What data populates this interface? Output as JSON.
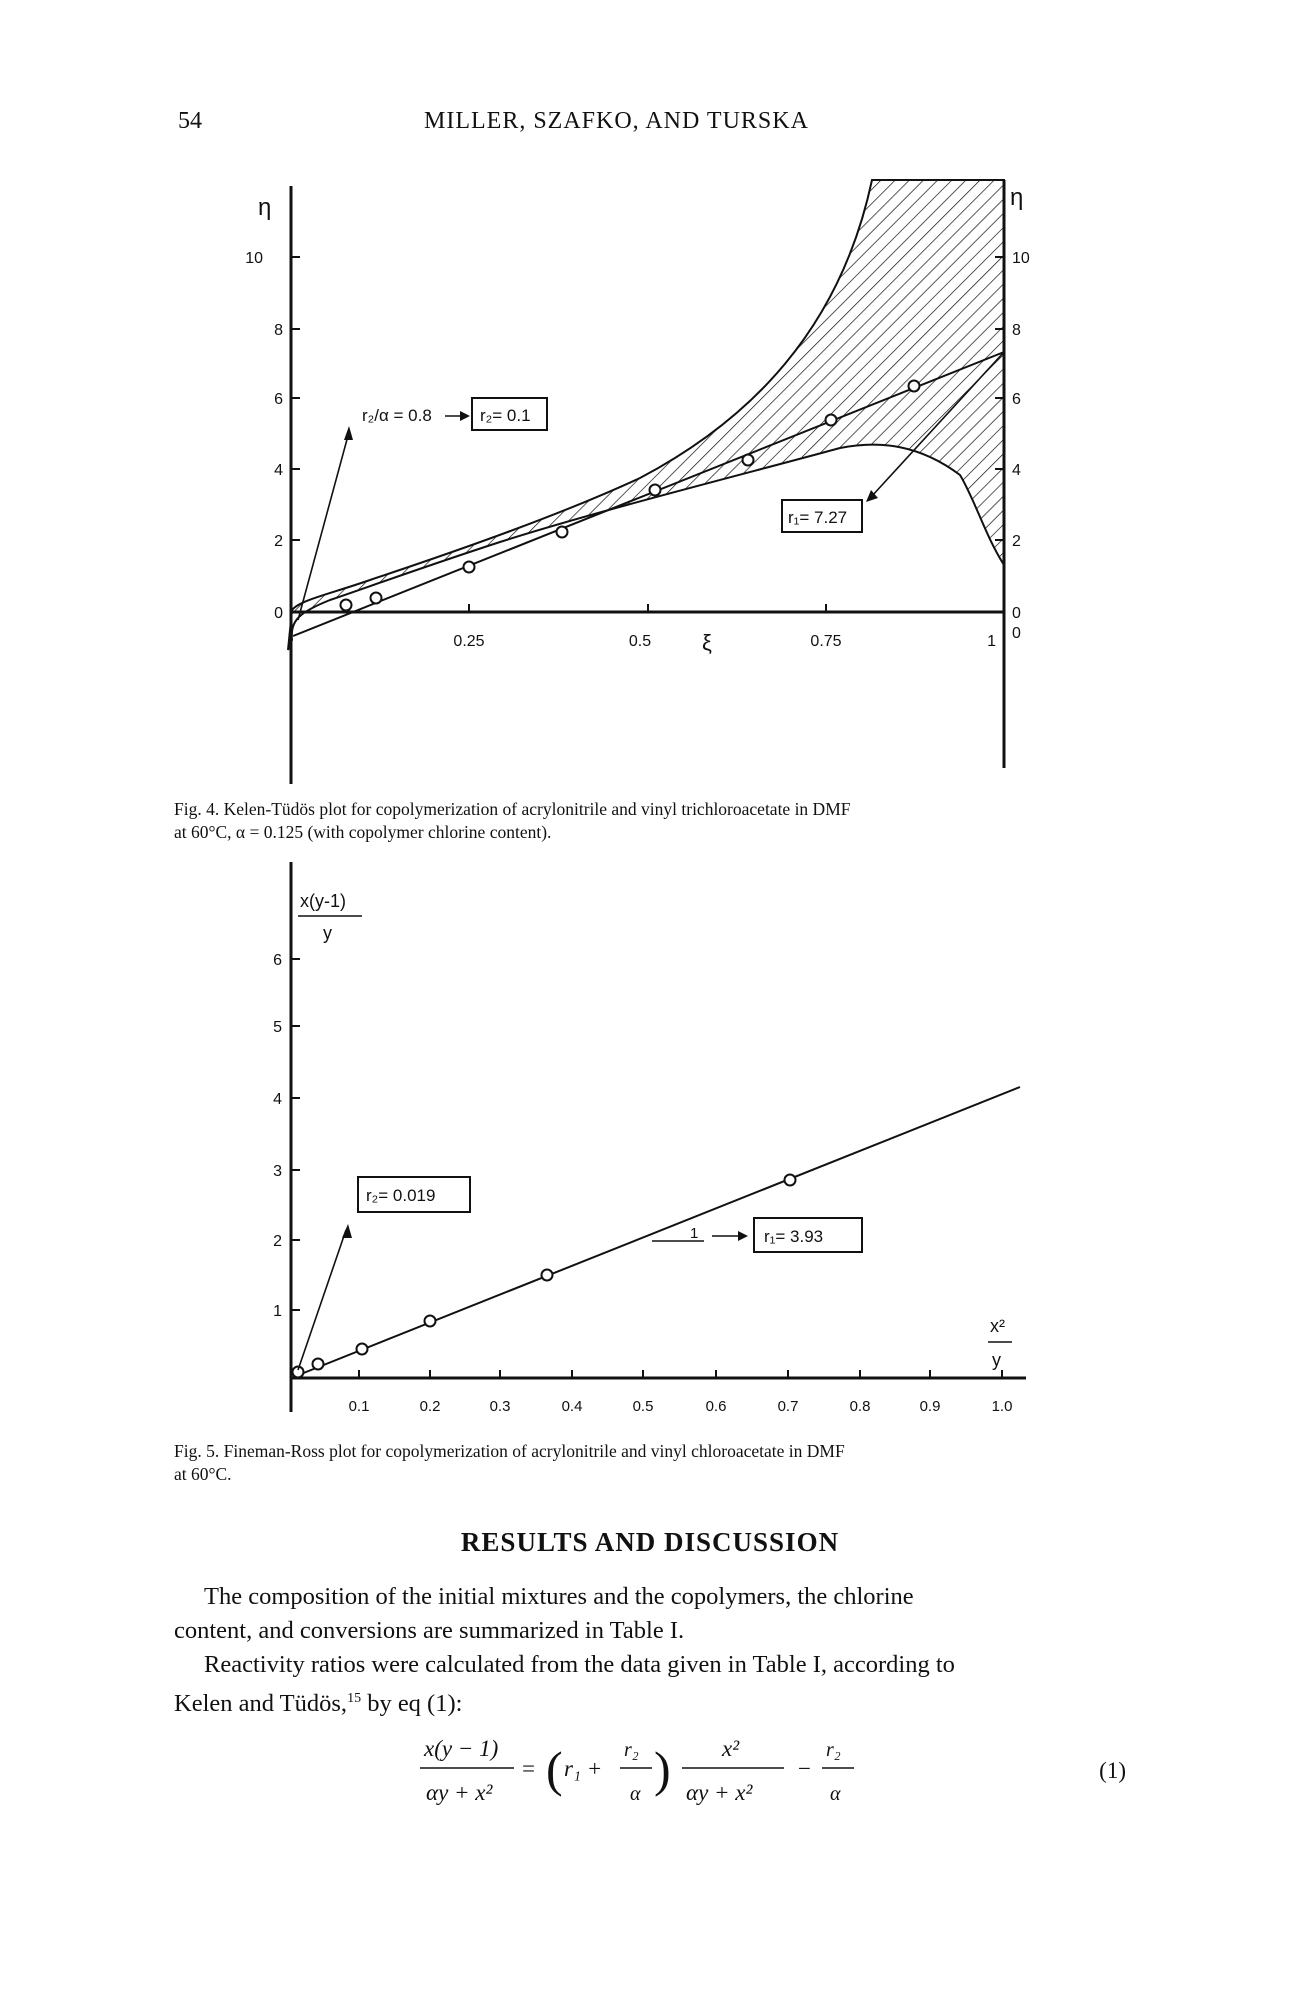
{
  "header": {
    "page_number": "54",
    "running_head": "MILLER, SZAFKO, AND TURSKA"
  },
  "figure4": {
    "caption_line1": "Fig. 4. Kelen-Tüdös plot for copolymerization of acrylonitrile and vinyl trichloroacetate in DMF",
    "caption_line2": "at 60°C, α = 0.125 (with copolymer chlorine content).",
    "y_axis_symbol_left": "η",
    "y_axis_symbol_right": "η",
    "x_axis_symbol": "ξ",
    "label_r2_alpha": "r₂/α = 0.8",
    "label_r2": "r₂= 0.1",
    "label_r1": "r₁= 7.27",
    "chart_data": {
      "type": "scatter",
      "x_ticks": [
        "0.25",
        "0.5",
        "0.75",
        "1"
      ],
      "y_ticks_left": [
        "0",
        "2",
        "4",
        "6",
        "8",
        "10"
      ],
      "y_ticks_right": [
        "0",
        "2",
        "4",
        "6",
        "8",
        "10"
      ],
      "xlim": [
        0,
        1
      ],
      "ylim": [
        -5,
        12
      ],
      "points": [
        {
          "x": 0.06,
          "y": 0.4
        },
        {
          "x": 0.12,
          "y": 1.0
        },
        {
          "x": 0.25,
          "y": 1.8
        },
        {
          "x": 0.38,
          "y": 2.6
        },
        {
          "x": 0.5,
          "y": 3.5
        },
        {
          "x": 0.62,
          "y": 4.4
        },
        {
          "x": 0.74,
          "y": 5.3
        },
        {
          "x": 0.86,
          "y": 6.1
        }
      ],
      "fit_line": {
        "x": [
          0,
          1
        ],
        "y": [
          -0.8,
          7.27
        ]
      },
      "confidence_region": "hatched",
      "grid": false
    }
  },
  "figure5": {
    "caption_line1": "Fig. 5. Fineman-Ross plot for copolymerization of acrylonitrile and vinyl chloroacetate in DMF",
    "caption_line2": "at 60°C.",
    "y_axis_label_numerator": "x(y-1)",
    "y_axis_label_denominator": "y",
    "x_axis_label_numerator": "x²",
    "x_axis_label_denominator": "y",
    "label_r2": "r₂= 0.019",
    "label_slope": "1",
    "label_r1": "r₁= 3.93",
    "chart_data": {
      "type": "scatter",
      "x_ticks": [
        "0.1",
        "0.2",
        "0.3",
        "0.4",
        "0.5",
        "0.6",
        "0.7",
        "0.8",
        "0.9",
        "1.0"
      ],
      "y_ticks": [
        "1",
        "2",
        "3",
        "4",
        "5",
        "6"
      ],
      "xlim": [
        0,
        1.0
      ],
      "ylim": [
        0,
        7
      ],
      "points": [
        {
          "x": 0.01,
          "y": 0.05
        },
        {
          "x": 0.04,
          "y": 0.18
        },
        {
          "x": 0.1,
          "y": 0.4
        },
        {
          "x": 0.2,
          "y": 0.8
        },
        {
          "x": 0.36,
          "y": 1.45
        },
        {
          "x": 0.69,
          "y": 2.75
        }
      ],
      "fit_line": {
        "x": [
          0,
          1.0
        ],
        "y": [
          -0.019,
          3.91
        ]
      },
      "grid": false
    }
  },
  "section": {
    "heading": "RESULTS AND DISCUSSION",
    "para1_line1": "The composition of the initial mixtures and the copolymers, the chlorine",
    "para1_line2": "content, and conversions are summarized in Table I.",
    "para2_line1": "Reactivity ratios were calculated from the data given in Table I, according to",
    "para2_line2_pre": "Kelen and Tüdös,",
    "para2_ref": "15",
    "para2_line2_post": " by eq (1):"
  },
  "equation": {
    "lhs_num": "x(y − 1)",
    "lhs_den": "αy + x²",
    "r1": "r₁ +",
    "r2": "r₂",
    "alpha": "α",
    "rhs_num": "x²",
    "rhs_den": "αy + x²",
    "number": "(1)"
  }
}
